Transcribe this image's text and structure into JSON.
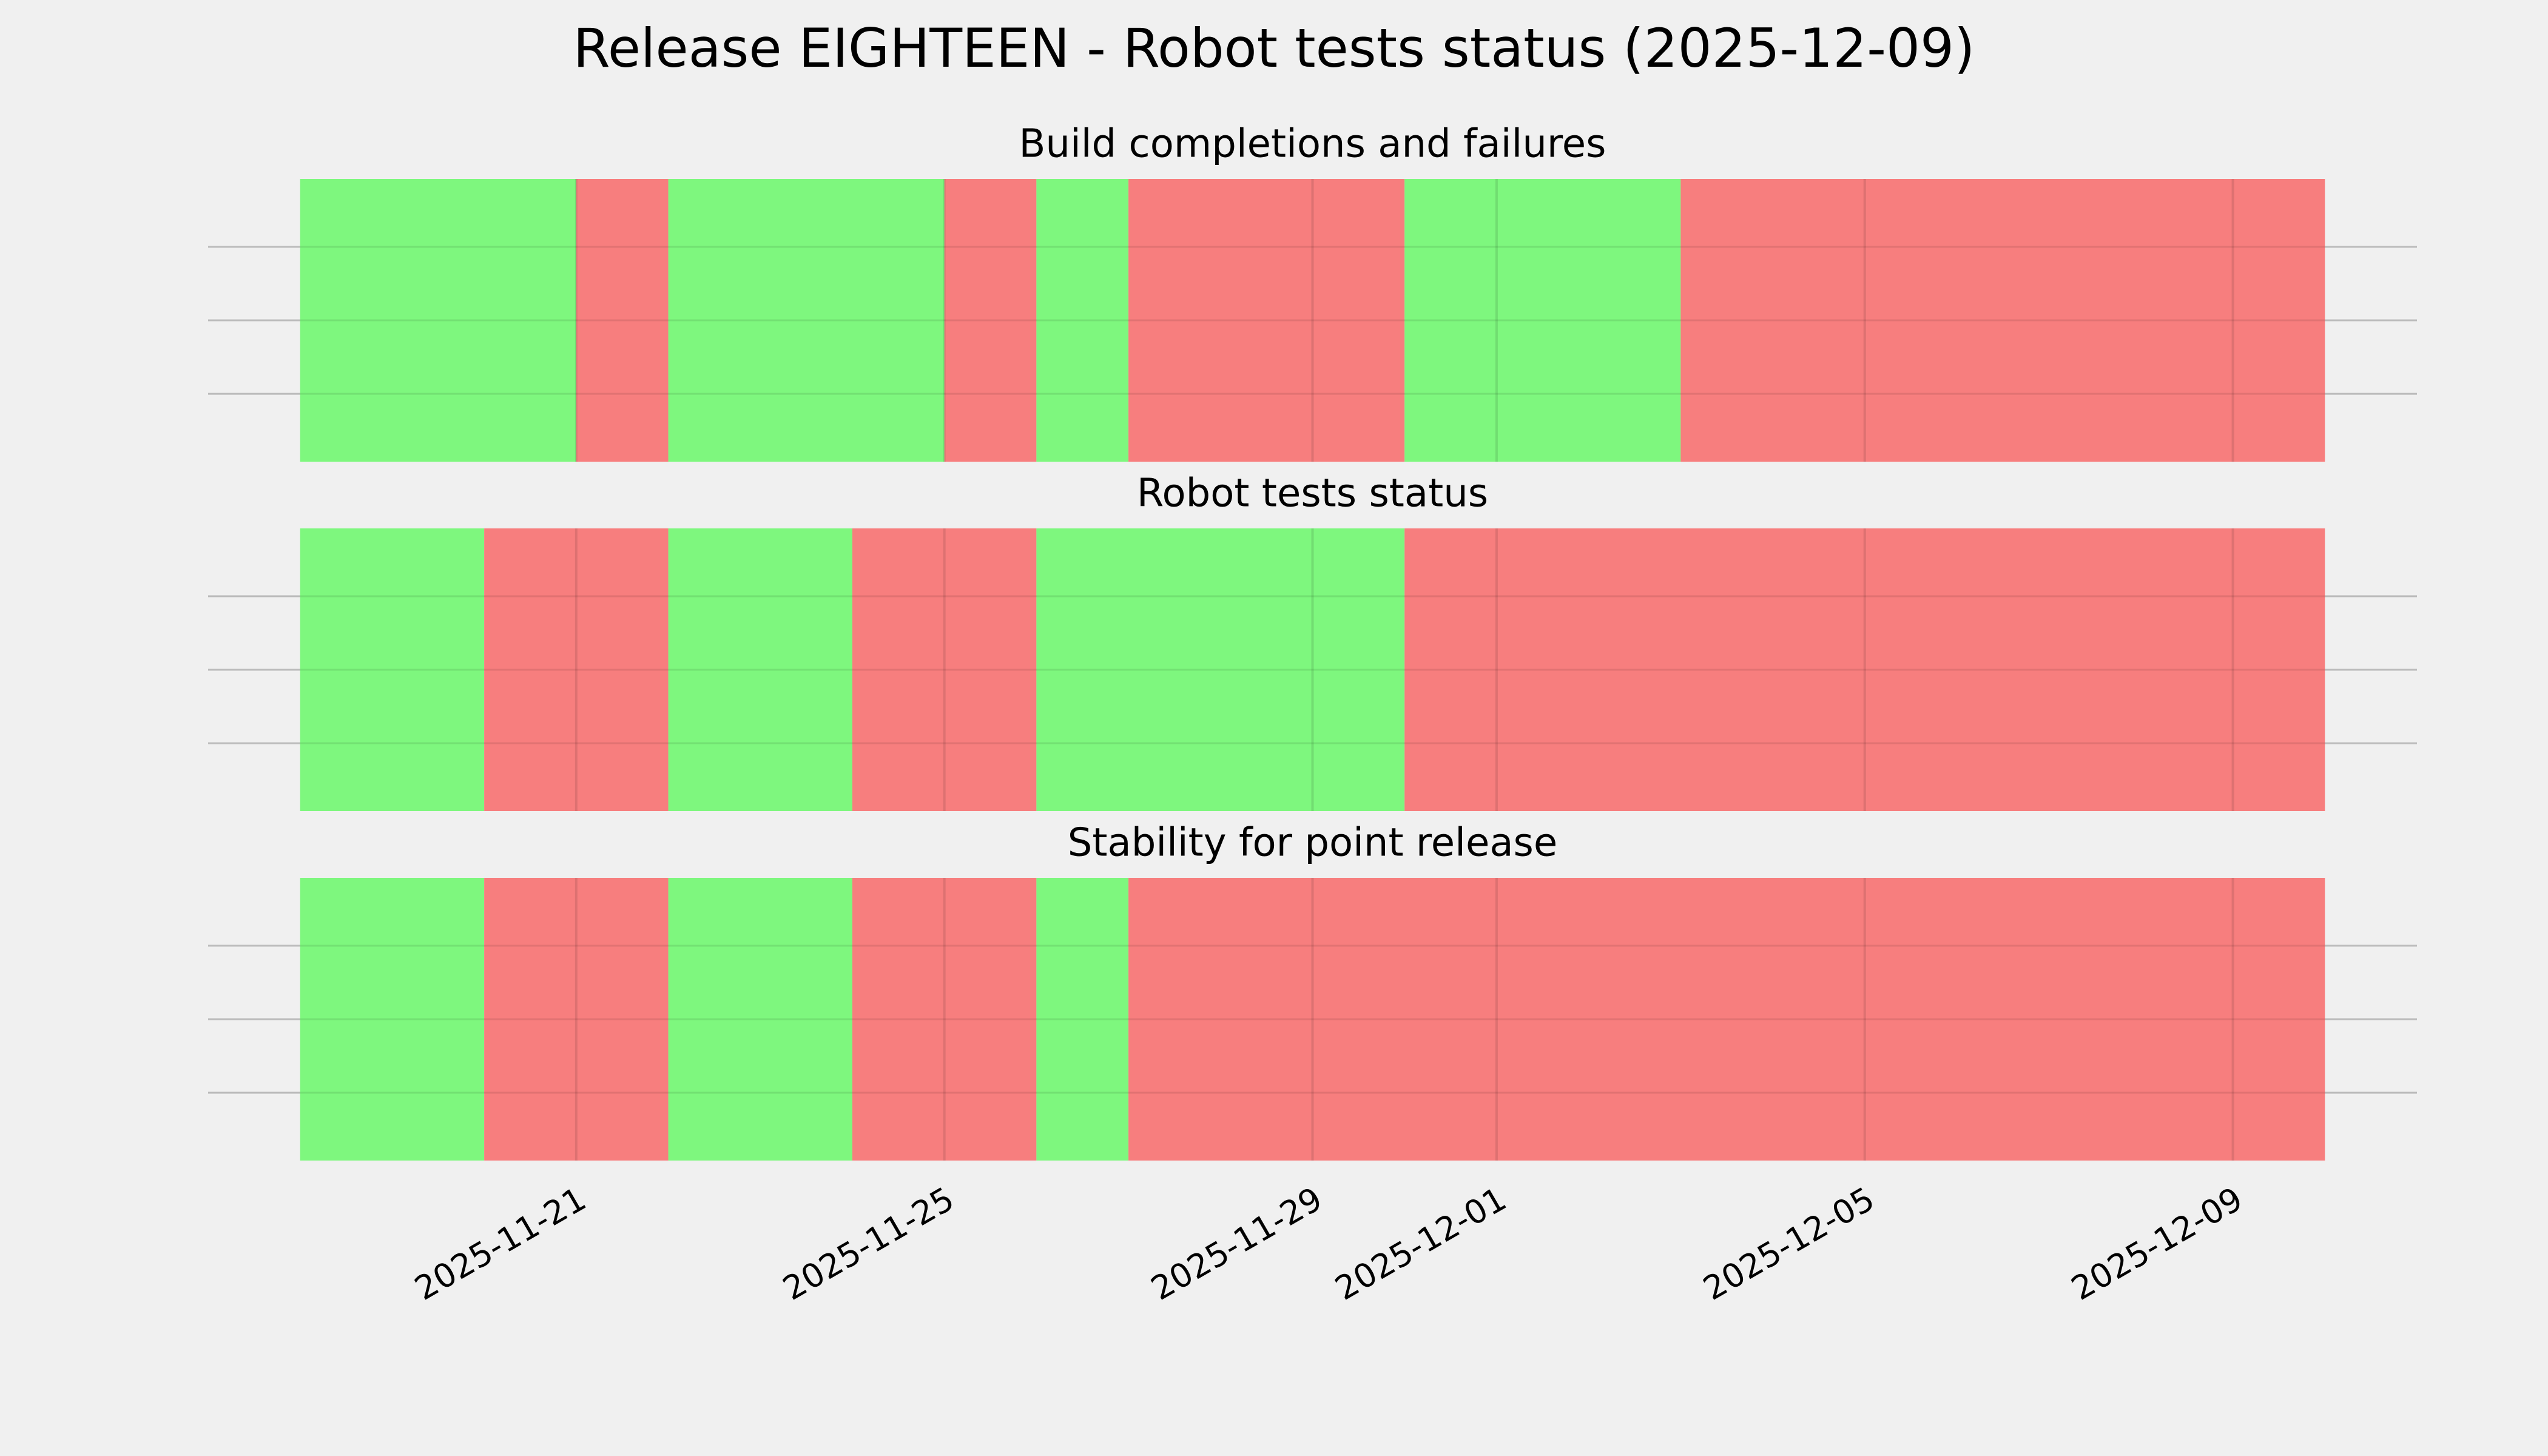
{
  "chart_data": {
    "type": "timeline",
    "title": "Release EIGHTEEN - Robot tests status (2025-12-09)",
    "xlim": [
      "2025-11-17",
      "2025-12-11"
    ],
    "xticks": [
      "2025-11-21",
      "2025-11-25",
      "2025-11-29",
      "2025-12-01",
      "2025-12-05",
      "2025-12-09"
    ],
    "grid": true,
    "panels": [
      {
        "title": "Build completions and failures",
        "spans": [
          {
            "start": "2025-11-18",
            "end": "2025-11-21",
            "color": "#77f777"
          },
          {
            "start": "2025-11-21",
            "end": "2025-11-22",
            "color": "#f77777"
          },
          {
            "start": "2025-11-22",
            "end": "2025-11-25",
            "color": "#77f777"
          },
          {
            "start": "2025-11-25",
            "end": "2025-11-26",
            "color": "#f77777"
          },
          {
            "start": "2025-11-26",
            "end": "2025-11-27",
            "color": "#77f777"
          },
          {
            "start": "2025-11-27",
            "end": "2025-11-30",
            "color": "#f77777"
          },
          {
            "start": "2025-11-30",
            "end": "2025-12-03",
            "color": "#77f777"
          },
          {
            "start": "2025-12-03",
            "end": "2025-12-10",
            "color": "#f77777"
          }
        ]
      },
      {
        "title": "Robot tests status",
        "spans": [
          {
            "start": "2025-11-18",
            "end": "2025-11-20",
            "color": "#77f777"
          },
          {
            "start": "2025-11-20",
            "end": "2025-11-22",
            "color": "#f77777"
          },
          {
            "start": "2025-11-22",
            "end": "2025-11-24",
            "color": "#77f777"
          },
          {
            "start": "2025-11-24",
            "end": "2025-11-26",
            "color": "#f77777"
          },
          {
            "start": "2025-11-26",
            "end": "2025-11-30",
            "color": "#77f777"
          },
          {
            "start": "2025-11-30",
            "end": "2025-12-10",
            "color": "#f77777"
          }
        ]
      },
      {
        "title": "Stability for point release",
        "spans": [
          {
            "start": "2025-11-18",
            "end": "2025-11-20",
            "color": "#77f777"
          },
          {
            "start": "2025-11-20",
            "end": "2025-11-22",
            "color": "#f77777"
          },
          {
            "start": "2025-11-22",
            "end": "2025-11-24",
            "color": "#77f777"
          },
          {
            "start": "2025-11-24",
            "end": "2025-11-26",
            "color": "#f77777"
          },
          {
            "start": "2025-11-26",
            "end": "2025-11-27",
            "color": "#77f777"
          },
          {
            "start": "2025-11-27",
            "end": "2025-12-10",
            "color": "#f77777"
          }
        ]
      }
    ]
  }
}
